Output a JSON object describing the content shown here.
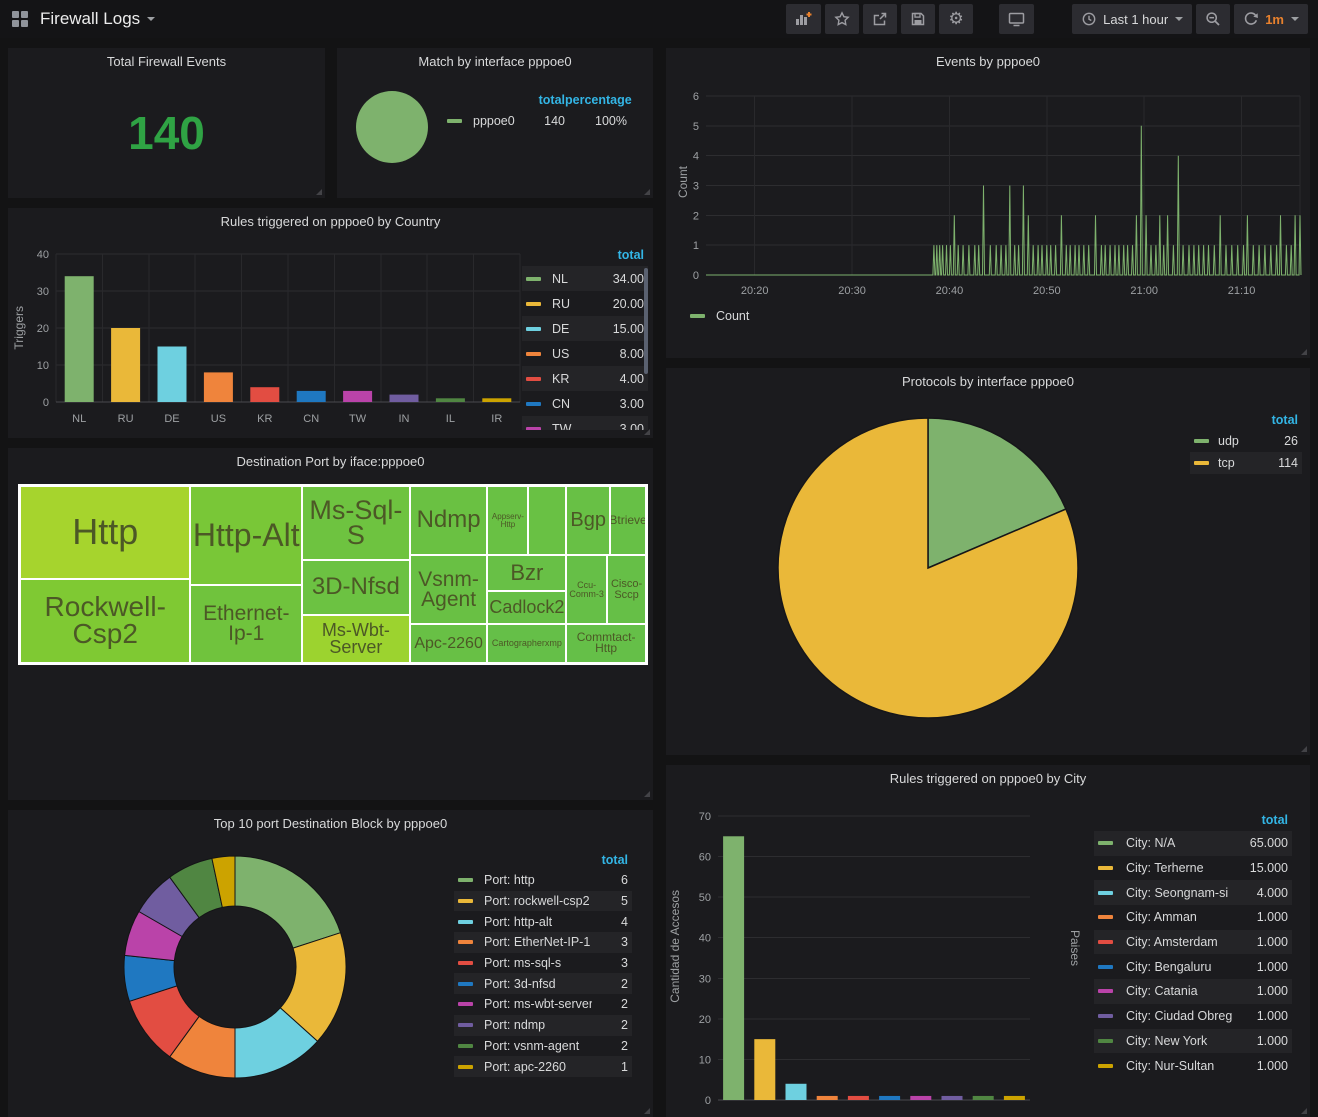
{
  "header": {
    "dashboard_title": "Firewall Logs",
    "time_range": "Last 1 hour",
    "refresh_interval": "1m"
  },
  "palette": [
    "#7eb26d",
    "#eab839",
    "#6ed0e0",
    "#ef843c",
    "#e24d42",
    "#1f78c1",
    "#ba43a9",
    "#705da0",
    "#508642",
    "#cca300"
  ],
  "accents": {
    "legend_header": "#33b5e5",
    "stat_green": "#2fa344",
    "series_green": "#7eb26d"
  },
  "panels": {
    "total": {
      "title": "Total Firewall Events",
      "value": "140"
    },
    "match": {
      "title": "Match by interface pppoe0"
    },
    "events": {
      "title": "Events by pppoe0",
      "ylabel": "Count"
    },
    "country": {
      "title": "Rules triggered on pppoe0 by Country",
      "ylabel": "Triggers"
    },
    "treemap": {
      "title": "Destination Port by iface:pppoe0"
    },
    "protocols": {
      "title": "Protocols by interface pppoe0"
    },
    "top10": {
      "title": "Top 10 port Destination Block by pppoe0"
    },
    "city": {
      "title": "Rules triggered on pppoe0 by City",
      "ylabel_left": "Cantidad de Accesos",
      "ylabel_right": "Paises"
    }
  },
  "chart_data": [
    {
      "id": "match",
      "type": "pie",
      "title": "Match by interface pppoe0",
      "slices": [
        {
          "label": "pppoe0",
          "value": 140,
          "color": "#7eb26d"
        }
      ],
      "legend": {
        "headers": [
          "total",
          "percentage"
        ],
        "rows": [
          {
            "label": "pppoe0",
            "color": "#7eb26d",
            "values": [
              "140",
              "100%"
            ]
          }
        ]
      }
    },
    {
      "id": "events",
      "type": "line",
      "title": "Events by pppoe0",
      "ylabel": "Count",
      "ylim": [
        0,
        6
      ],
      "yticks": [
        0,
        1,
        2,
        3,
        4,
        5,
        6
      ],
      "x_max_min": 61,
      "xticks": [
        {
          "min": 5,
          "label": "20:20"
        },
        {
          "min": 15,
          "label": "20:30"
        },
        {
          "min": 25,
          "label": "20:40"
        },
        {
          "min": 35,
          "label": "20:50"
        },
        {
          "min": 45,
          "label": "21:00"
        },
        {
          "min": 55,
          "label": "21:10"
        }
      ],
      "series": [
        {
          "name": "Count",
          "color": "#7eb26d",
          "spikes": [
            [
              23.4,
              1
            ],
            [
              23.7,
              1
            ],
            [
              24.0,
              1
            ],
            [
              24.3,
              1
            ],
            [
              24.7,
              1
            ],
            [
              25.1,
              1
            ],
            [
              25.5,
              2
            ],
            [
              25.9,
              1
            ],
            [
              26.4,
              1
            ],
            [
              27.0,
              1
            ],
            [
              27.6,
              1
            ],
            [
              28.0,
              1
            ],
            [
              28.5,
              3
            ],
            [
              29.2,
              1
            ],
            [
              29.8,
              1
            ],
            [
              30.3,
              1
            ],
            [
              30.8,
              1
            ],
            [
              31.2,
              3
            ],
            [
              31.7,
              1
            ],
            [
              32.1,
              1
            ],
            [
              32.6,
              3
            ],
            [
              33.1,
              2
            ],
            [
              33.6,
              1
            ],
            [
              34.1,
              1
            ],
            [
              34.5,
              1
            ],
            [
              35.0,
              1
            ],
            [
              35.4,
              1
            ],
            [
              35.9,
              1
            ],
            [
              36.5,
              2
            ],
            [
              37.0,
              1
            ],
            [
              37.4,
              1
            ],
            [
              37.9,
              1
            ],
            [
              38.3,
              1
            ],
            [
              38.8,
              1
            ],
            [
              39.3,
              1
            ],
            [
              40.0,
              2
            ],
            [
              40.6,
              1
            ],
            [
              41.0,
              1
            ],
            [
              41.5,
              1
            ],
            [
              42.0,
              1
            ],
            [
              42.4,
              1
            ],
            [
              42.9,
              1
            ],
            [
              43.3,
              1
            ],
            [
              43.8,
              1
            ],
            [
              44.2,
              2
            ],
            [
              44.7,
              5
            ],
            [
              45.2,
              2
            ],
            [
              45.7,
              1
            ],
            [
              46.2,
              1
            ],
            [
              46.6,
              2
            ],
            [
              47.0,
              1
            ],
            [
              47.4,
              2
            ],
            [
              48.0,
              1
            ],
            [
              48.5,
              4
            ],
            [
              49.0,
              1
            ],
            [
              49.6,
              1
            ],
            [
              50.1,
              1
            ],
            [
              50.6,
              1
            ],
            [
              51.1,
              1
            ],
            [
              51.6,
              1
            ],
            [
              52.2,
              1
            ],
            [
              52.8,
              2
            ],
            [
              53.4,
              1
            ],
            [
              54.0,
              1
            ],
            [
              54.6,
              1
            ],
            [
              55.2,
              1
            ],
            [
              55.6,
              2
            ],
            [
              56.2,
              1
            ],
            [
              56.8,
              1
            ],
            [
              57.4,
              1
            ],
            [
              58.0,
              1
            ],
            [
              58.6,
              1
            ],
            [
              59.0,
              2
            ],
            [
              59.6,
              1
            ],
            [
              60.1,
              1
            ],
            [
              60.5,
              2
            ],
            [
              61.0,
              2
            ]
          ]
        }
      ],
      "legend": {
        "headers": [],
        "rows": [
          {
            "label": "Count",
            "color": "#7eb26d",
            "values": []
          }
        ]
      }
    },
    {
      "id": "country",
      "type": "bar",
      "title": "Rules triggered on pppoe0 by Country",
      "ylabel": "Triggers",
      "categories": [
        "NL",
        "RU",
        "DE",
        "US",
        "KR",
        "CN",
        "TW",
        "IN",
        "IL",
        "IR"
      ],
      "values": [
        34,
        20,
        15,
        8,
        4,
        3,
        3,
        2,
        1,
        1
      ],
      "colors": [
        "#7eb26d",
        "#eab839",
        "#6ed0e0",
        "#ef843c",
        "#e24d42",
        "#1f78c1",
        "#ba43a9",
        "#705da0",
        "#508642",
        "#cca300"
      ],
      "ylim": [
        0,
        40
      ],
      "yticks": [
        0,
        10,
        20,
        30,
        40
      ],
      "legend": {
        "headers": [
          "total"
        ],
        "rows": [
          {
            "label": "NL",
            "color": "#7eb26d",
            "values": [
              "34.00"
            ]
          },
          {
            "label": "RU",
            "color": "#eab839",
            "values": [
              "20.00"
            ]
          },
          {
            "label": "DE",
            "color": "#6ed0e0",
            "values": [
              "15.00"
            ]
          },
          {
            "label": "US",
            "color": "#ef843c",
            "values": [
              "8.00"
            ]
          },
          {
            "label": "KR",
            "color": "#e24d42",
            "values": [
              "4.00"
            ]
          },
          {
            "label": "CN",
            "color": "#1f78c1",
            "values": [
              "3.00"
            ]
          },
          {
            "label": "TW",
            "color": "#ba43a9",
            "values": [
              "3.00"
            ]
          }
        ]
      }
    },
    {
      "id": "treemap",
      "type": "treemap",
      "title": "Destination Port by iface:pppoe0",
      "cells": [
        {
          "label": "Http",
          "x": 0,
          "y": 0,
          "w": 27.23,
          "h": 52.27,
          "color": "#a6d42d",
          "fs": 36
        },
        {
          "label": "Rockwell-Csp2",
          "x": 0,
          "y": 52.27,
          "w": 27.23,
          "h": 47.73,
          "color": "#7fc933",
          "fs": 28
        },
        {
          "label": "Http-Alt",
          "x": 27.23,
          "y": 0,
          "w": 17.83,
          "h": 55.68,
          "color": "#79c737",
          "fs": 32
        },
        {
          "label": "Ethernet-Ip-1",
          "x": 27.23,
          "y": 55.68,
          "w": 17.83,
          "h": 44.32,
          "color": "#70c33d",
          "fs": 21
        },
        {
          "label": "Ms-Sql-S",
          "x": 45.06,
          "y": 0,
          "w": 17.2,
          "h": 42.05,
          "color": "#6ec340",
          "fs": 27
        },
        {
          "label": "3D-Nfsd",
          "x": 45.06,
          "y": 42.05,
          "w": 17.2,
          "h": 30.68,
          "color": "#6cc242",
          "fs": 24
        },
        {
          "label": "Ms-Wbt-Server",
          "x": 45.06,
          "y": 72.73,
          "w": 17.2,
          "h": 27.27,
          "color": "#9cd32f",
          "fs": 18
        },
        {
          "label": "Ndmp",
          "x": 62.26,
          "y": 0,
          "w": 12.42,
          "h": 39.2,
          "color": "#6ac142",
          "fs": 24
        },
        {
          "label": "Vsnm-Agent",
          "x": 62.26,
          "y": 39.2,
          "w": 12.42,
          "h": 38.64,
          "color": "#69c044",
          "fs": 21
        },
        {
          "label": "Apc-2260",
          "x": 62.26,
          "y": 77.84,
          "w": 12.42,
          "h": 22.16,
          "color": "#68c045",
          "fs": 16
        },
        {
          "label": "Appserv-Http",
          "x": 74.68,
          "y": 0,
          "w": 6.53,
          "h": 39.2,
          "color": "#69c144",
          "fs": 8
        },
        {
          "label": "",
          "x": 81.21,
          "y": 0,
          "w": 6.05,
          "h": 39.2,
          "color": "#69c144",
          "fs": 10
        },
        {
          "label": "Bgp",
          "x": 87.26,
          "y": 0,
          "w": 7.01,
          "h": 39.2,
          "color": "#68c045",
          "fs": 20
        },
        {
          "label": "Btrieve",
          "x": 94.27,
          "y": 0,
          "w": 5.73,
          "h": 39.2,
          "color": "#67c046",
          "fs": 12
        },
        {
          "label": "Bzr",
          "x": 74.68,
          "y": 39.2,
          "w": 12.58,
          "h": 19.89,
          "color": "#68c046",
          "fs": 22
        },
        {
          "label": "Cadlock2",
          "x": 74.68,
          "y": 59.09,
          "w": 12.58,
          "h": 18.75,
          "color": "#67bf46",
          "fs": 18
        },
        {
          "label": "Ccu-Comm-3",
          "x": 87.26,
          "y": 39.2,
          "w": 6.53,
          "h": 38.64,
          "color": "#66bf47",
          "fs": 9
        },
        {
          "label": "Cisco-Sccp",
          "x": 93.79,
          "y": 39.2,
          "w": 6.21,
          "h": 38.64,
          "color": "#66bf47",
          "fs": 11
        },
        {
          "label": "Cartographerxmp",
          "x": 74.68,
          "y": 77.84,
          "w": 12.58,
          "h": 22.16,
          "color": "#65bf48",
          "fs": 9
        },
        {
          "label": "Commtact-Http",
          "x": 87.26,
          "y": 77.84,
          "w": 12.74,
          "h": 22.16,
          "color": "#65bf48",
          "fs": 12
        }
      ]
    },
    {
      "id": "protocols",
      "type": "pie",
      "title": "Protocols by interface pppoe0",
      "slices": [
        {
          "label": "udp",
          "value": 26,
          "color": "#7eb26d"
        },
        {
          "label": "tcp",
          "value": 114,
          "color": "#eab839"
        }
      ],
      "legend": {
        "headers": [
          "total"
        ],
        "rows": [
          {
            "label": "udp",
            "color": "#7eb26d",
            "values": [
              "26"
            ]
          },
          {
            "label": "tcp",
            "color": "#eab839",
            "values": [
              "114"
            ]
          }
        ]
      }
    },
    {
      "id": "top10",
      "type": "donut",
      "title": "Top 10 port Destination Block by pppoe0",
      "slices": [
        {
          "label": "Port: http",
          "value": 6,
          "color": "#7eb26d"
        },
        {
          "label": "Port: rockwell-csp2",
          "value": 5,
          "color": "#eab839"
        },
        {
          "label": "Port: http-alt",
          "value": 4,
          "color": "#6ed0e0"
        },
        {
          "label": "Port: EtherNet-IP-1",
          "value": 3,
          "color": "#ef843c"
        },
        {
          "label": "Port: ms-sql-s",
          "value": 3,
          "color": "#e24d42"
        },
        {
          "label": "Port: 3d-nfsd",
          "value": 2,
          "color": "#1f78c1"
        },
        {
          "label": "Port: ms-wbt-server",
          "value": 2,
          "color": "#ba43a9"
        },
        {
          "label": "Port: ndmp",
          "value": 2,
          "color": "#705da0"
        },
        {
          "label": "Port: vsnm-agent",
          "value": 2,
          "color": "#508642"
        },
        {
          "label": "Port: apc-2260",
          "value": 1,
          "color": "#cca300"
        }
      ],
      "legend": {
        "headers": [
          "total"
        ],
        "rows": [
          {
            "label": "Port: http",
            "color": "#7eb26d",
            "values": [
              "6"
            ]
          },
          {
            "label": "Port: rockwell-csp2",
            "color": "#eab839",
            "values": [
              "5"
            ]
          },
          {
            "label": "Port: http-alt",
            "color": "#6ed0e0",
            "values": [
              "4"
            ]
          },
          {
            "label": "Port: EtherNet-IP-1",
            "color": "#ef843c",
            "values": [
              "3"
            ]
          },
          {
            "label": "Port: ms-sql-s",
            "color": "#e24d42",
            "values": [
              "3"
            ]
          },
          {
            "label": "Port: 3d-nfsd",
            "color": "#1f78c1",
            "values": [
              "2"
            ]
          },
          {
            "label": "Port: ms-wbt-server",
            "color": "#ba43a9",
            "values": [
              "2"
            ]
          },
          {
            "label": "Port: ndmp",
            "color": "#705da0",
            "values": [
              "2"
            ]
          },
          {
            "label": "Port: vsnm-agent",
            "color": "#508642",
            "values": [
              "2"
            ]
          },
          {
            "label": "Port: apc-2260",
            "color": "#cca300",
            "values": [
              "1"
            ]
          }
        ]
      }
    },
    {
      "id": "city",
      "type": "bar",
      "title": "Rules triggered on pppoe0 by City",
      "ylabel_left": "Cantidad de Accesos",
      "ylabel_right": "Paises",
      "categories": [
        "N/A",
        "Terherne",
        "Seongnam-si",
        "Amman",
        "Amsterdam",
        "Bengaluru",
        "Catania",
        "Ciudad Obregón",
        "New York",
        "Nur-Sultan"
      ],
      "values": [
        65,
        15,
        4,
        1,
        1,
        1,
        1,
        1,
        1,
        1
      ],
      "colors": [
        "#7eb26d",
        "#eab839",
        "#6ed0e0",
        "#ef843c",
        "#e24d42",
        "#1f78c1",
        "#ba43a9",
        "#705da0",
        "#508642",
        "#cca300"
      ],
      "ylim": [
        0,
        70
      ],
      "yticks": [
        0,
        10,
        20,
        30,
        40,
        50,
        60,
        70
      ],
      "legend": {
        "headers": [
          "total"
        ],
        "rows": [
          {
            "label": "City: N/A",
            "color": "#7eb26d",
            "values": [
              "65.000"
            ]
          },
          {
            "label": "City: Terherne",
            "color": "#eab839",
            "values": [
              "15.000"
            ]
          },
          {
            "label": "City: Seongnam-si",
            "color": "#6ed0e0",
            "values": [
              "4.000"
            ]
          },
          {
            "label": "City: Amman",
            "color": "#ef843c",
            "values": [
              "1.000"
            ]
          },
          {
            "label": "City: Amsterdam",
            "color": "#e24d42",
            "values": [
              "1.000"
            ]
          },
          {
            "label": "City: Bengaluru",
            "color": "#1f78c1",
            "values": [
              "1.000"
            ]
          },
          {
            "label": "City: Catania",
            "color": "#ba43a9",
            "values": [
              "1.000"
            ]
          },
          {
            "label": "City: Ciudad Obregón",
            "color": "#705da0",
            "values": [
              "1.000"
            ]
          },
          {
            "label": "City: New York",
            "color": "#508642",
            "values": [
              "1.000"
            ]
          },
          {
            "label": "City: Nur-Sultan",
            "color": "#cca300",
            "values": [
              "1.000"
            ]
          }
        ]
      }
    }
  ]
}
